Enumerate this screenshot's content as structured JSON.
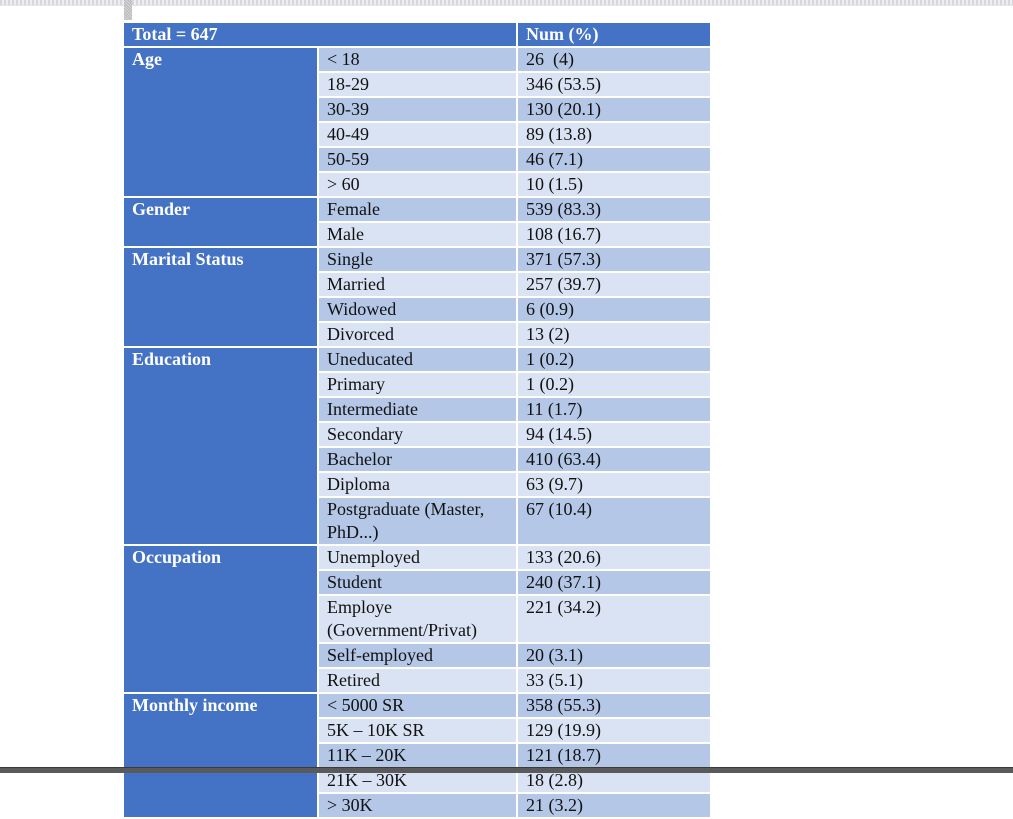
{
  "table": {
    "header": {
      "total": "Total = 647",
      "num": "Num (%)"
    },
    "groups": [
      {
        "category": "Age",
        "rows": [
          {
            "label": "< 18",
            "value": "26  (4)"
          },
          {
            "label": "18-29",
            "value": "346 (53.5)"
          },
          {
            "label": "30-39",
            "value": "130 (20.1)"
          },
          {
            "label": "40-49",
            "value": "89 (13.8)"
          },
          {
            "label": "50-59",
            "value": "46 (7.1)"
          },
          {
            "label": "> 60",
            "value": "10 (1.5)"
          }
        ]
      },
      {
        "category": "Gender",
        "rows": [
          {
            "label": "Female",
            "value": "539 (83.3)"
          },
          {
            "label": "Male",
            "value": "108 (16.7)"
          }
        ]
      },
      {
        "category": "Marital Status",
        "rows": [
          {
            "label": "Single",
            "value": "371 (57.3)"
          },
          {
            "label": "Married",
            "value": "257 (39.7)"
          },
          {
            "label": "Widowed",
            "value": "6 (0.9)"
          },
          {
            "label": "Divorced",
            "value": "13 (2)"
          }
        ]
      },
      {
        "category": "Education",
        "rows": [
          {
            "label": "Uneducated",
            "value": "1 (0.2)"
          },
          {
            "label": "Primary",
            "value": "1 (0.2)"
          },
          {
            "label": "Intermediate",
            "value": "11 (1.7)"
          },
          {
            "label": "Secondary",
            "value": "94 (14.5)"
          },
          {
            "label": "Bachelor",
            "value": "410 (63.4)"
          },
          {
            "label": "Diploma",
            "value": "63 (9.7)"
          },
          {
            "label": "Postgraduate (Master, PhD...)",
            "value": "67 (10.4)"
          }
        ]
      },
      {
        "category": "Occupation",
        "rows": [
          {
            "label": "Unemployed",
            "value": "133 (20.6)"
          },
          {
            "label": "Student",
            "value": "240 (37.1)"
          },
          {
            "label": "Employe (Government/Privat)",
            "value": "221 (34.2)"
          },
          {
            "label": "Self-employed",
            "value": "20 (3.1)"
          },
          {
            "label": "Retired",
            "value": "33 (5.1)"
          }
        ]
      },
      {
        "category": "Monthly income",
        "rows": [
          {
            "label": "< 5000 SR",
            "value": "358 (55.3)"
          },
          {
            "label": "5K – 10K SR",
            "value": "129 (19.9)"
          },
          {
            "label": "11K – 20K",
            "value": "121 (18.7)"
          },
          {
            "label": "21K – 30K",
            "value": "18 (2.8)"
          },
          {
            "label": "> 30K",
            "value": "21 (3.2)"
          }
        ]
      }
    ]
  }
}
